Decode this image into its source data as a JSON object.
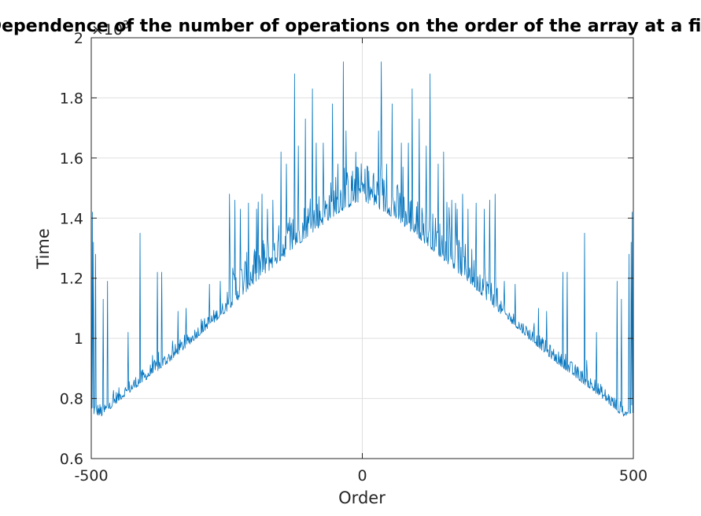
{
  "chart_data": {
    "type": "line",
    "title": "Dependence of the number of operations on the order of the array at a fixed",
    "xlabel": "Order",
    "ylabel": "Time",
    "y_exponent_label": "×10",
    "y_exponent_power": "3",
    "xlim": [
      -500,
      500
    ],
    "ylim": [
      600,
      2000
    ],
    "xticks": [
      -500,
      0,
      500
    ],
    "xtick_labels": [
      "-500",
      "0",
      "500"
    ],
    "yticks": [
      600,
      800,
      1000,
      1200,
      1400,
      1600,
      1800,
      2000
    ],
    "ytick_labels": [
      "0.6",
      "0.8",
      "1",
      "1.2",
      "1.4",
      "1.6",
      "1.8",
      "2"
    ],
    "grid": true,
    "series": [
      {
        "color": "#0072bd",
        "x_start": -500,
        "x_end": 500,
        "x_step": 1,
        "baseline_points": [
          {
            "x": -500,
            "y": 750
          },
          {
            "x": -480,
            "y": 740
          },
          {
            "x": -450,
            "y": 790
          },
          {
            "x": -400,
            "y": 860
          },
          {
            "x": -350,
            "y": 930
          },
          {
            "x": -300,
            "y": 1010
          },
          {
            "x": -250,
            "y": 1090
          },
          {
            "x": -200,
            "y": 1180
          },
          {
            "x": -150,
            "y": 1260
          },
          {
            "x": -100,
            "y": 1340
          },
          {
            "x": -50,
            "y": 1410
          },
          {
            "x": 0,
            "y": 1460
          },
          {
            "x": 50,
            "y": 1410
          },
          {
            "x": 100,
            "y": 1340
          },
          {
            "x": 150,
            "y": 1260
          },
          {
            "x": 200,
            "y": 1180
          },
          {
            "x": 250,
            "y": 1090
          },
          {
            "x": 300,
            "y": 1010
          },
          {
            "x": 350,
            "y": 930
          },
          {
            "x": 400,
            "y": 860
          },
          {
            "x": 450,
            "y": 790
          },
          {
            "x": 480,
            "y": 740
          },
          {
            "x": 500,
            "y": 750
          }
        ],
        "peaks": [
          {
            "x": -498,
            "y": 1420
          },
          {
            "x": -496,
            "y": 1320
          },
          {
            "x": -492,
            "y": 1280
          },
          {
            "x": -478,
            "y": 1130
          },
          {
            "x": -470,
            "y": 1190
          },
          {
            "x": -432,
            "y": 1020
          },
          {
            "x": -410,
            "y": 1350
          },
          {
            "x": -378,
            "y": 1220
          },
          {
            "x": -370,
            "y": 1220
          },
          {
            "x": -340,
            "y": 1090
          },
          {
            "x": -325,
            "y": 1100
          },
          {
            "x": -282,
            "y": 1180
          },
          {
            "x": -262,
            "y": 1190
          },
          {
            "x": -245,
            "y": 1480
          },
          {
            "x": -235,
            "y": 1460
          },
          {
            "x": -225,
            "y": 1430
          },
          {
            "x": -210,
            "y": 1450
          },
          {
            "x": -195,
            "y": 1430
          },
          {
            "x": -185,
            "y": 1480
          },
          {
            "x": -175,
            "y": 1430
          },
          {
            "x": -165,
            "y": 1460
          },
          {
            "x": -150,
            "y": 1620
          },
          {
            "x": -140,
            "y": 1580
          },
          {
            "x": -125,
            "y": 1880
          },
          {
            "x": -118,
            "y": 1640
          },
          {
            "x": -105,
            "y": 1730
          },
          {
            "x": -92,
            "y": 1830
          },
          {
            "x": -85,
            "y": 1650
          },
          {
            "x": -72,
            "y": 1650
          },
          {
            "x": -55,
            "y": 1780
          },
          {
            "x": -45,
            "y": 1580
          },
          {
            "x": -35,
            "y": 1920
          },
          {
            "x": -30,
            "y": 1690
          },
          {
            "x": -20,
            "y": 1540
          },
          {
            "x": -10,
            "y": 1570
          },
          {
            "x": 10,
            "y": 1570
          },
          {
            "x": 20,
            "y": 1540
          },
          {
            "x": 30,
            "y": 1690
          },
          {
            "x": 35,
            "y": 1920
          },
          {
            "x": 45,
            "y": 1580
          },
          {
            "x": 55,
            "y": 1780
          },
          {
            "x": 72,
            "y": 1650
          },
          {
            "x": 85,
            "y": 1650
          },
          {
            "x": 92,
            "y": 1830
          },
          {
            "x": 105,
            "y": 1730
          },
          {
            "x": 118,
            "y": 1640
          },
          {
            "x": 125,
            "y": 1880
          },
          {
            "x": 140,
            "y": 1580
          },
          {
            "x": 150,
            "y": 1620
          },
          {
            "x": 165,
            "y": 1460
          },
          {
            "x": 175,
            "y": 1430
          },
          {
            "x": 185,
            "y": 1480
          },
          {
            "x": 195,
            "y": 1430
          },
          {
            "x": 210,
            "y": 1450
          },
          {
            "x": 225,
            "y": 1430
          },
          {
            "x": 235,
            "y": 1460
          },
          {
            "x": 245,
            "y": 1480
          },
          {
            "x": 262,
            "y": 1190
          },
          {
            "x": 282,
            "y": 1180
          },
          {
            "x": 325,
            "y": 1100
          },
          {
            "x": 340,
            "y": 1090
          },
          {
            "x": 370,
            "y": 1220
          },
          {
            "x": 378,
            "y": 1220
          },
          {
            "x": 410,
            "y": 1350
          },
          {
            "x": 432,
            "y": 1020
          },
          {
            "x": 470,
            "y": 1190
          },
          {
            "x": 478,
            "y": 1130
          },
          {
            "x": 492,
            "y": 1280
          },
          {
            "x": 496,
            "y": 1320
          },
          {
            "x": 498,
            "y": 1420
          }
        ]
      }
    ]
  }
}
